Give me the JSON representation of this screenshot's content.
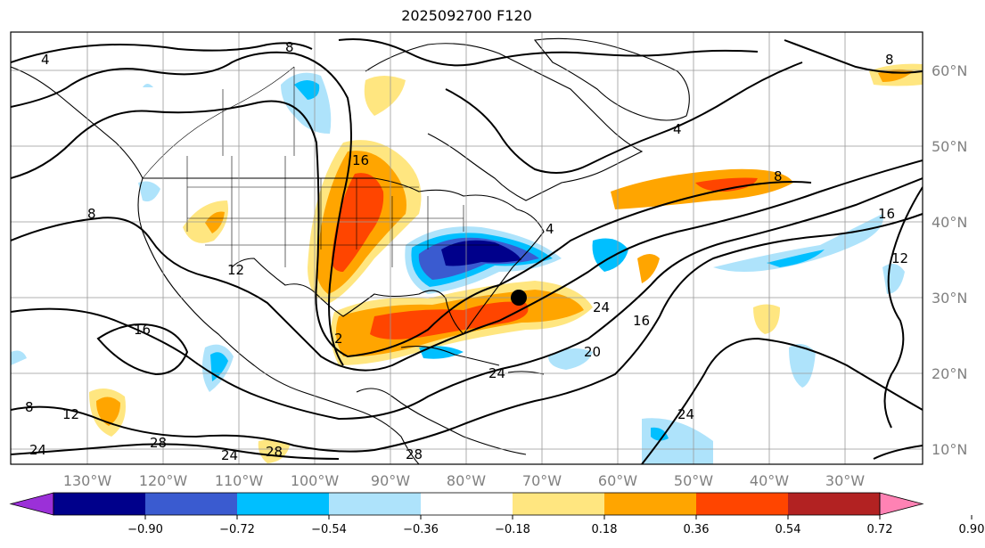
{
  "title": "2025092700 F120",
  "lat_labels": [
    "60°N",
    "50°N",
    "40°N",
    "30°N",
    "20°N",
    "10°N"
  ],
  "lon_labels": [
    "130°W",
    "120°W",
    "110°W",
    "100°W",
    "90°W",
    "80°W",
    "70°W",
    "60°W",
    "50°W",
    "40°W",
    "30°W"
  ],
  "colorbar": {
    "ticks": [
      "−0.90",
      "−0.72",
      "−0.54",
      "−0.36",
      "−0.18",
      "0.18",
      "0.36",
      "0.54",
      "0.72",
      "0.90"
    ],
    "colors": [
      "#9b30d8",
      "#00008b",
      "#3a5bd0",
      "#00bfff",
      "#aee3fb",
      "#ffffff",
      "#ffe680",
      "#ffa500",
      "#ff4500",
      "#b22222",
      "#ff82b4"
    ]
  },
  "contour_labels": [
    "4",
    "8",
    "8",
    "12",
    "12",
    "16",
    "16",
    "16",
    "16",
    "20",
    "24",
    "24",
    "24",
    "24",
    "24",
    "28",
    "28",
    "28",
    "2",
    "4",
    "8",
    "8",
    "12",
    "8",
    "4"
  ],
  "colors": {
    "pos_weak": "#ffe680",
    "pos_mid": "#ffa500",
    "pos_strong": "#ff4500",
    "neg_weak": "#aee3fb",
    "neg_mid": "#00bfff",
    "neg_strong": "#3a5bd0",
    "neg_max": "#00008b"
  }
}
